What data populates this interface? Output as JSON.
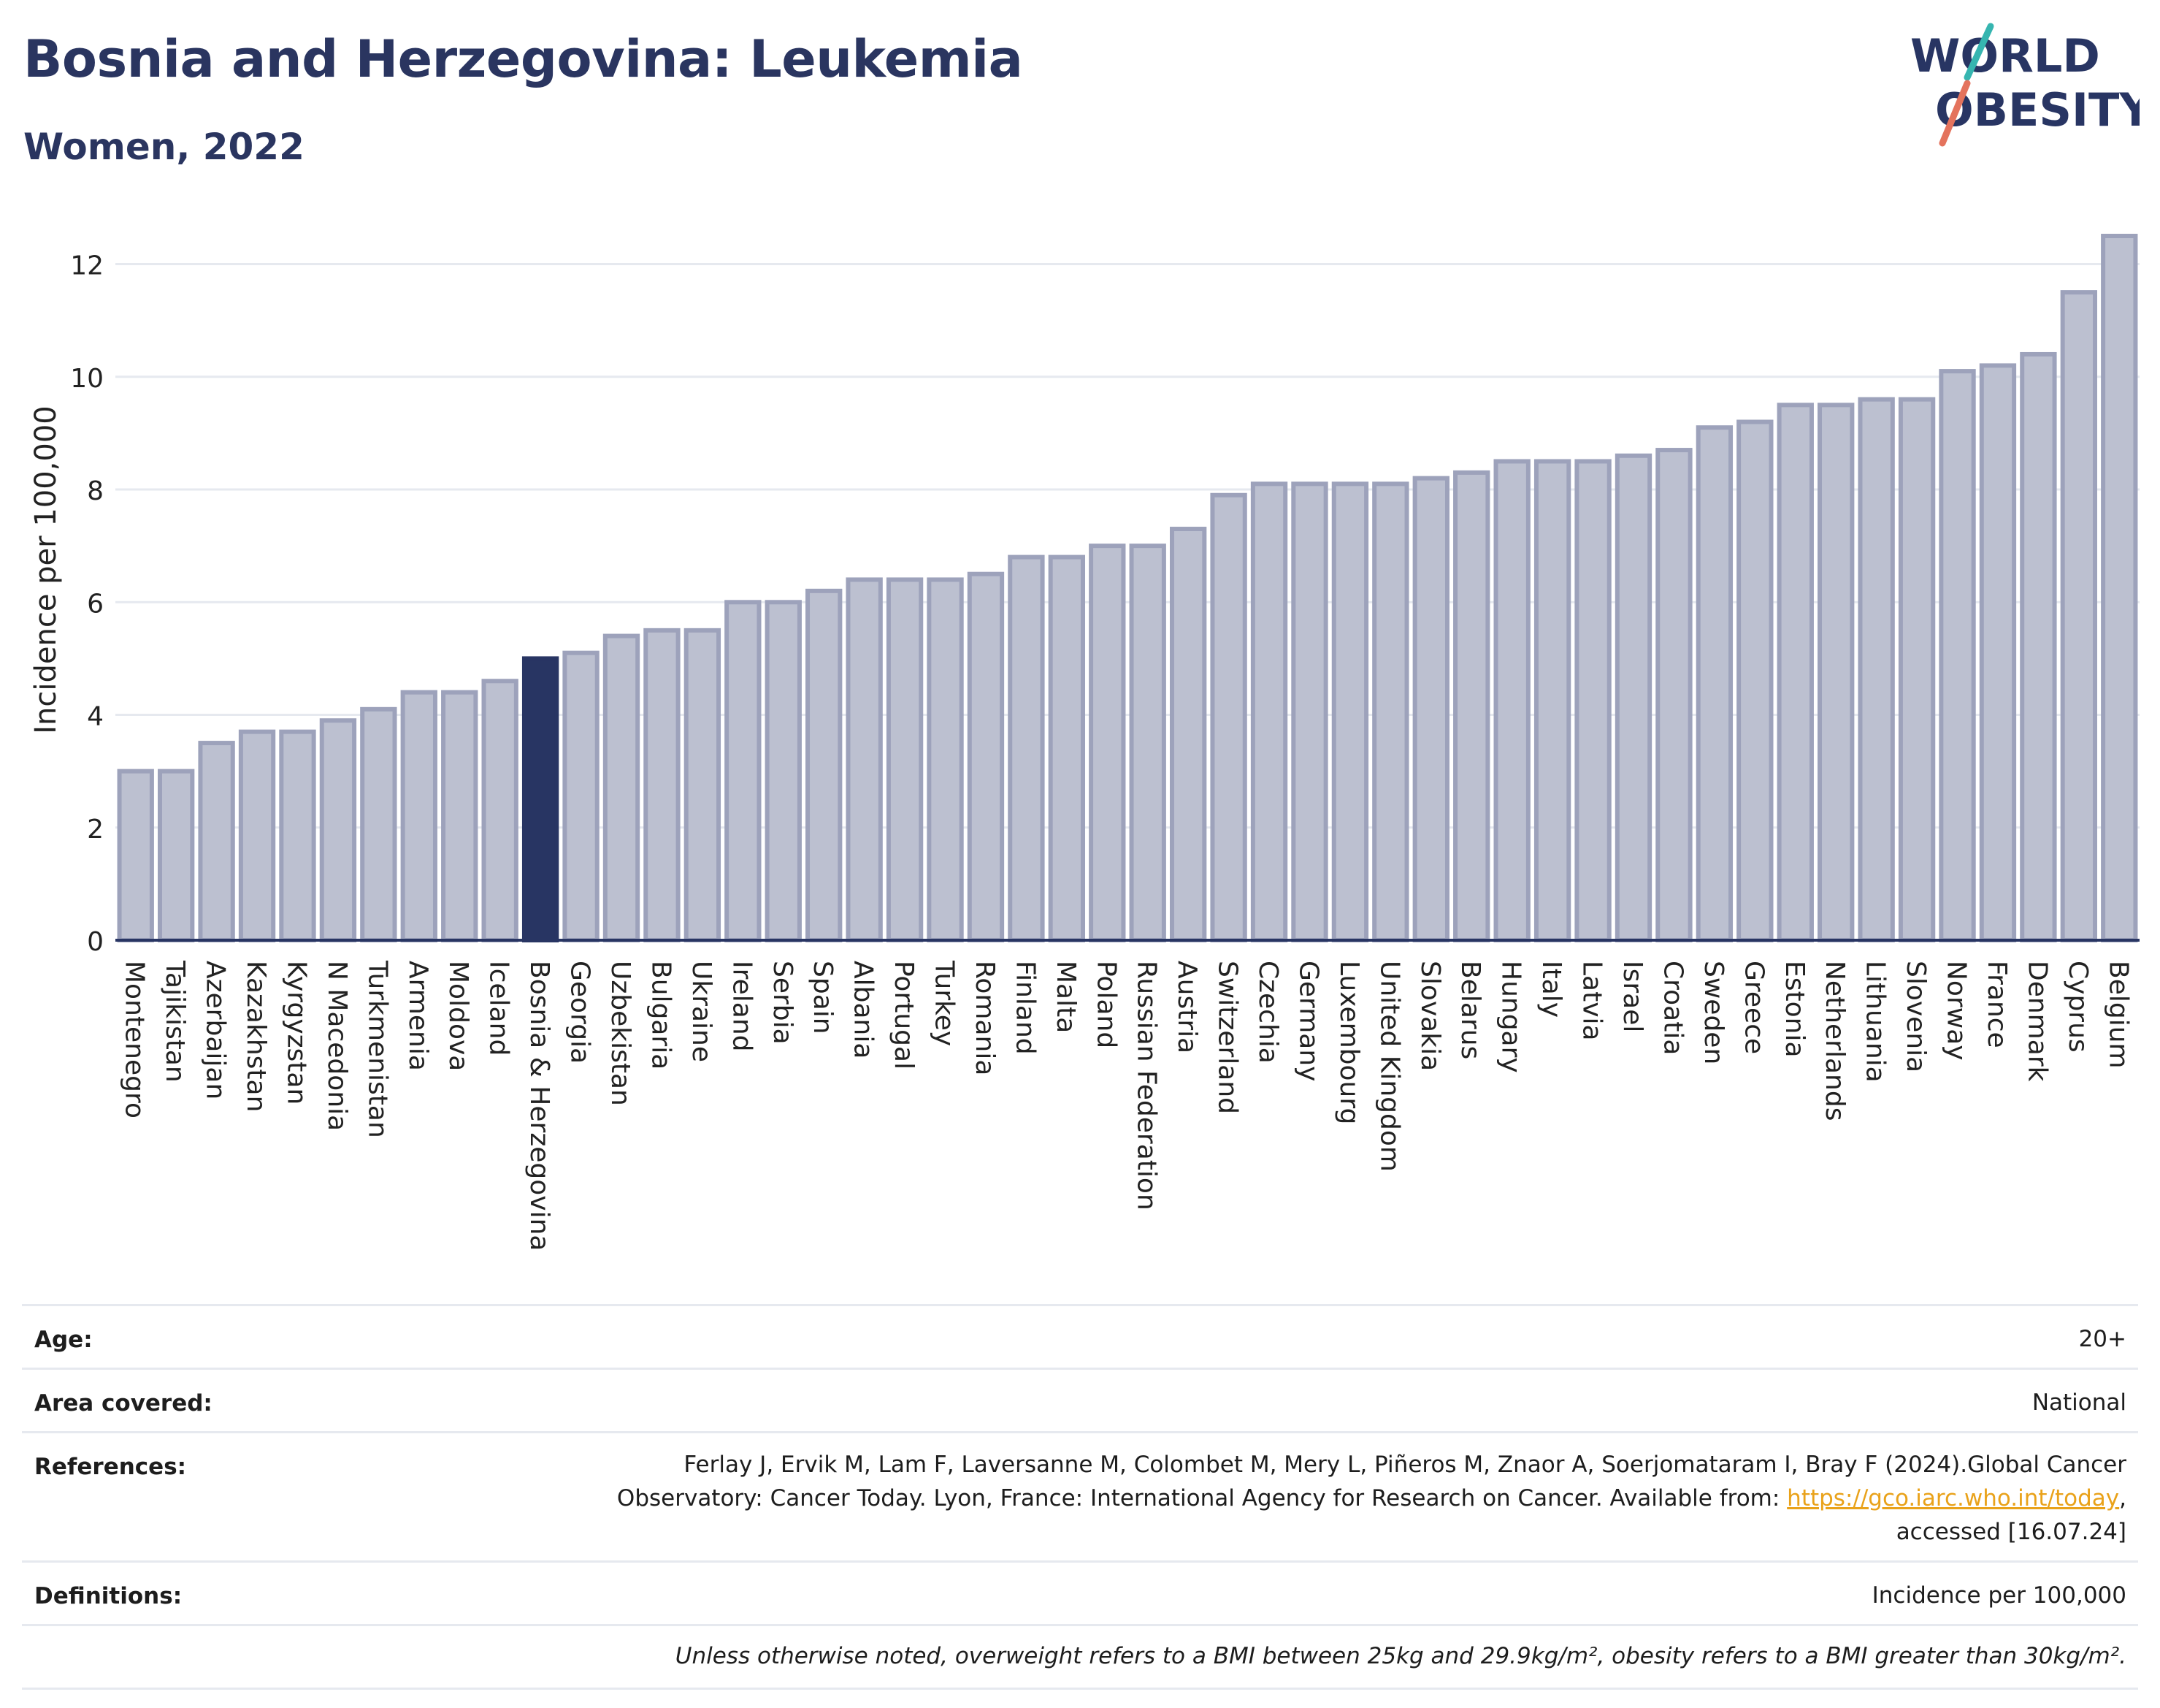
{
  "header": {
    "title": "Bosnia and Herzegovina: Leukemia",
    "subtitle": "Women, 2022",
    "logo_line1": "WORLD",
    "logo_line2": "OBESITY"
  },
  "colors": {
    "bar": "#bcc0d0",
    "bar_stroke": "#9da2bb",
    "highlight": "#283563",
    "grid": "#e6e9ef",
    "axis": "#283563",
    "logo_navy": "#283563",
    "logo_teal": "#36b5b0",
    "logo_coral": "#e4735d"
  },
  "chart_data": {
    "type": "bar",
    "ylabel": "Incidence per 100,000",
    "ylim": [
      0,
      12.5
    ],
    "yticks": [
      0,
      2,
      4,
      6,
      8,
      10,
      12
    ],
    "grid": true,
    "highlight": "Bosnia & Herzegovina",
    "categories": [
      "Montenegro",
      "Tajikistan",
      "Azerbaijan",
      "Kazakhstan",
      "Kyrgyzstan",
      "N Macedonia",
      "Turkmenistan",
      "Armenia",
      "Moldova",
      "Iceland",
      "Bosnia & Herzegovina",
      "Georgia",
      "Uzbekistan",
      "Bulgaria",
      "Ukraine",
      "Ireland",
      "Serbia",
      "Spain",
      "Albania",
      "Portugal",
      "Turkey",
      "Romania",
      "Finland",
      "Malta",
      "Poland",
      "Russian Federation",
      "Austria",
      "Switzerland",
      "Czechia",
      "Germany",
      "Luxembourg",
      "United Kingdom",
      "Slovakia",
      "Belarus",
      "Hungary",
      "Italy",
      "Latvia",
      "Israel",
      "Croatia",
      "Sweden",
      "Greece",
      "Estonia",
      "Netherlands",
      "Lithuania",
      "Slovenia",
      "Norway",
      "France",
      "Denmark",
      "Cyprus",
      "Belgium"
    ],
    "values": [
      3.0,
      3.0,
      3.5,
      3.7,
      3.7,
      3.9,
      4.1,
      4.4,
      4.4,
      4.6,
      5.0,
      5.1,
      5.4,
      5.5,
      5.5,
      6.0,
      6.0,
      6.2,
      6.4,
      6.4,
      6.4,
      6.5,
      6.8,
      6.8,
      7.0,
      7.0,
      7.3,
      7.9,
      8.1,
      8.1,
      8.1,
      8.1,
      8.2,
      8.3,
      8.5,
      8.5,
      8.5,
      8.6,
      8.7,
      9.1,
      9.2,
      9.5,
      9.5,
      9.6,
      9.6,
      10.1,
      10.2,
      10.4,
      11.5,
      12.5
    ]
  },
  "info": {
    "age_label": "Age:",
    "age_value": "20+",
    "area_label": "Area covered:",
    "area_value": "National",
    "references_label": "References:",
    "references_line1": "Ferlay J, Ervik M, Lam F, Laversanne M, Colombet M, Mery L, Piñeros M, Znaor A, Soerjomataram I, Bray F (2024).Global Cancer",
    "references_line2_pre": "Observatory: Cancer Today. Lyon, France: International Agency for Research on Cancer. Available from: ",
    "references_link": "https://gco.iarc.who.int/today",
    "references_line2_post": ",",
    "references_line3": "accessed [16.07.24]",
    "definitions_label": "Definitions:",
    "definitions_value": "Incidence per 100,000",
    "note": "Unless otherwise noted, overweight refers to a BMI between 25kg and 29.9kg/m², obesity refers to a BMI greater than 30kg/m²."
  }
}
